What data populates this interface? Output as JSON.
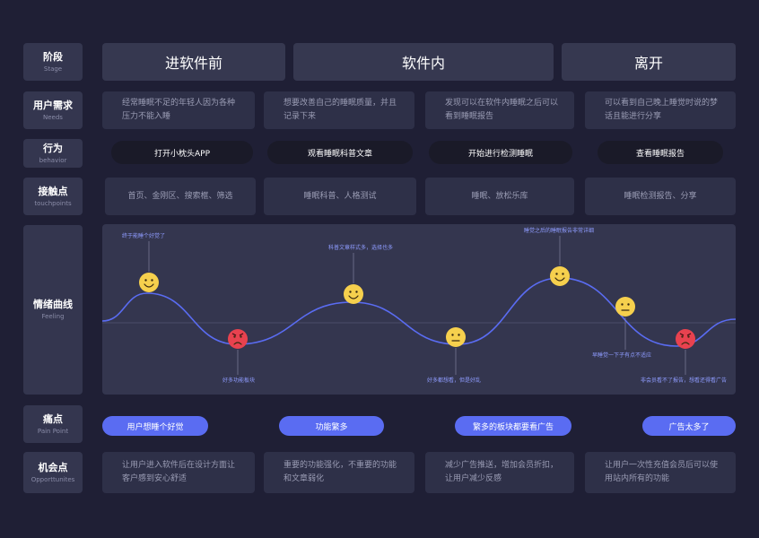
{
  "row_labels": {
    "stage": {
      "cn": "阶段",
      "en": "Stage"
    },
    "needs": {
      "cn": "用户需求",
      "en": "Needs"
    },
    "behavior": {
      "cn": "行为",
      "en": "behavior"
    },
    "touchpoints": {
      "cn": "接触点",
      "en": "touchpoints"
    },
    "feeling": {
      "cn": "情绪曲线",
      "en": "Feeling"
    },
    "pain": {
      "cn": "痛点",
      "en": "Pain Point"
    },
    "opportunities": {
      "cn": "机会点",
      "en": "Opporttunites"
    }
  },
  "stages": [
    "进软件前",
    "软件内",
    "离开"
  ],
  "needs": [
    "经常睡眠不足的年轻人因为各种压力不能入睡",
    "想要改善自己的睡眠质量，并且记录下来",
    "发现可以在软件内睡眠之后可以看到睡眠报告",
    "可以看到自己晚上睡觉时说的梦话且能进行分享"
  ],
  "behaviors": [
    "打开小枕头APP",
    "观看睡眠科普文章",
    "开始进行检测睡眠",
    "查看睡眠报告"
  ],
  "touchpoints": [
    "首页、金刚区、搜索框、筛选",
    "睡眠科普、人格测试",
    "睡眠、放松乐库",
    "睡眠检测报告、分享"
  ],
  "feeling": {
    "annotations": [
      {
        "text": "终于能睡个好觉了"
      },
      {
        "text": "好多功能板块"
      },
      {
        "text": "科普文章样式多，选择也多"
      },
      {
        "text": "好多都想看，但是好乱"
      },
      {
        "text": "睡觉之后的睡眠报告非常详细"
      },
      {
        "text": "早睡觉一下子有点不适应"
      },
      {
        "text": "非会员看不了报告，想看还得看广告"
      }
    ],
    "emotions": [
      "happy",
      "angry",
      "happy",
      "neutral",
      "happy",
      "neutral",
      "angry"
    ],
    "colors": {
      "happy": "#f6d04d",
      "neutral": "#f6d04d",
      "angry": "#e8424f",
      "curve": "#5a6cf2",
      "note": "#8f9cff"
    }
  },
  "pain_points": [
    "用户想睡个好觉",
    "功能繁多",
    "繁多的板块都要看广告",
    "广告太多了"
  ],
  "opportunities": [
    "让用户进入软件后在设计方面让客户感到安心舒适",
    "重要的功能强化，不重要的功能和文章弱化",
    "减少广告推送，增加会员折扣，让用户减少反感",
    "让用户一次性充值会员后可以使用站内所有的功能"
  ]
}
